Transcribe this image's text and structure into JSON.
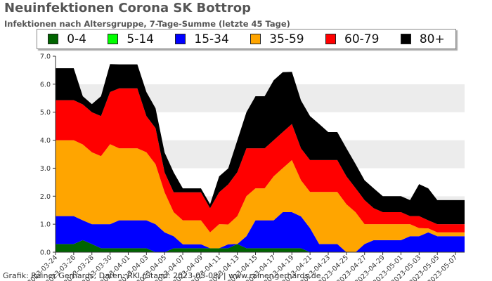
{
  "title": "Neuinfektionen Corona SK Bottrop",
  "subtitle": "Infektionen nach Altersgruppe, 7-Tage-Summe (letzte 45 Tage)",
  "footer": "Grafik: Rainer Gerhards, Daten: RKI (Stand: 2023-05-08) | www.rainer-gerhards.de",
  "legend": [
    {
      "label": "0-4",
      "color": "#006400"
    },
    {
      "label": "5-14",
      "color": "#00ff00"
    },
    {
      "label": "15-34",
      "color": "#0000ff"
    },
    {
      "label": "35-59",
      "color": "#ffa500"
    },
    {
      "label": "60-79",
      "color": "#ff0000"
    },
    {
      "label": "80+",
      "color": "#000000"
    }
  ],
  "chart_data": {
    "type": "area",
    "stacked": true,
    "title": "Neuinfektionen Corona SK Bottrop",
    "subtitle": "Infektionen nach Altersgruppe, 7-Tage-Summe (letzte 45 Tage)",
    "ylim": [
      0,
      7
    ],
    "yticks": [
      "0.0",
      "1.0",
      "2.0",
      "3.0",
      "4.0",
      "5.0",
      "6.0",
      "7.0"
    ],
    "x_tick_labels": [
      "2023-03-24",
      "2023-03-26",
      "2023-03-28",
      "2023-03-30",
      "2023-04-01",
      "2023-04-03",
      "2023-04-05",
      "2023-04-07",
      "2023-04-09",
      "2023-04-11",
      "2023-04-13",
      "2023-04-15",
      "2023-04-17",
      "2023-04-19",
      "2023-04-21",
      "2023-04-23",
      "2023-04-25",
      "2023-04-27",
      "2023-04-29",
      "2023-05-01",
      "2023-05-03",
      "2023-05-05",
      "2023-05-07"
    ],
    "x": [
      "2023-03-24",
      "2023-03-25",
      "2023-03-26",
      "2023-03-27",
      "2023-03-28",
      "2023-03-29",
      "2023-03-30",
      "2023-03-31",
      "2023-04-01",
      "2023-04-02",
      "2023-04-03",
      "2023-04-04",
      "2023-04-05",
      "2023-04-06",
      "2023-04-07",
      "2023-04-08",
      "2023-04-09",
      "2023-04-10",
      "2023-04-11",
      "2023-04-12",
      "2023-04-13",
      "2023-04-14",
      "2023-04-15",
      "2023-04-16",
      "2023-04-17",
      "2023-04-18",
      "2023-04-19",
      "2023-04-20",
      "2023-04-21",
      "2023-04-22",
      "2023-04-23",
      "2023-04-24",
      "2023-04-25",
      "2023-04-26",
      "2023-04-27",
      "2023-04-28",
      "2023-04-29",
      "2023-04-30",
      "2023-05-01",
      "2023-05-02",
      "2023-05-03",
      "2023-05-04",
      "2023-05-05",
      "2023-05-06",
      "2023-05-07",
      "2023-05-08"
    ],
    "grid": "horizontal bands",
    "legend_position": "top",
    "series": [
      {
        "name": "0-4",
        "color": "#006400",
        "values": [
          0.29,
          0.29,
          0.29,
          0.43,
          0.29,
          0.14,
          0.14,
          0.14,
          0.14,
          0.14,
          0.14,
          0,
          0,
          0.14,
          0.14,
          0.14,
          0.14,
          0.14,
          0.14,
          0.14,
          0.29,
          0.14,
          0.14,
          0.14,
          0.14,
          0.14,
          0.14,
          0.14,
          0,
          0,
          0,
          0,
          0,
          0,
          0,
          0,
          0,
          0,
          0,
          0,
          0,
          0,
          0,
          0,
          0,
          0
        ]
      },
      {
        "name": "5-14",
        "color": "#00ff00",
        "values": [
          0,
          0,
          0,
          0,
          0,
          0,
          0,
          0,
          0,
          0,
          0,
          0,
          0,
          0,
          0,
          0,
          0,
          0,
          0,
          0,
          0,
          0,
          0,
          0,
          0,
          0,
          0,
          0,
          0,
          0,
          0,
          0,
          0,
          0,
          0,
          0,
          0,
          0,
          0,
          0,
          0,
          0,
          0,
          0,
          0,
          0
        ]
      },
      {
        "name": "15-34",
        "color": "#0000ff",
        "values": [
          1.0,
          1.0,
          1.0,
          0.71,
          0.71,
          0.86,
          0.86,
          1.0,
          1.0,
          1.0,
          1.0,
          1.0,
          0.71,
          0.43,
          0.14,
          0.14,
          0.14,
          0.0,
          0.0,
          0.14,
          0.0,
          0.43,
          1.0,
          1.0,
          1.0,
          1.29,
          1.29,
          1.14,
          0.86,
          0.29,
          0.29,
          0.29,
          0,
          0,
          0.29,
          0.43,
          0.43,
          0.43,
          0.43,
          0.57,
          0.57,
          0.71,
          0.57,
          0.57,
          0.57,
          0.57
        ]
      },
      {
        "name": "35-59",
        "color": "#ffa500",
        "values": [
          2.71,
          2.71,
          2.71,
          2.71,
          2.57,
          2.43,
          2.86,
          2.57,
          2.57,
          2.57,
          2.43,
          2.14,
          1.43,
          0.86,
          0.86,
          0.86,
          0.86,
          0.57,
          0.86,
          0.71,
          1.0,
          1.43,
          1.14,
          1.14,
          1.57,
          1.57,
          1.86,
          1.29,
          1.29,
          1.86,
          1.86,
          1.86,
          1.71,
          1.43,
          0.71,
          0.57,
          0.57,
          0.57,
          0.57,
          0.43,
          0.29,
          0.14,
          0.14,
          0.14,
          0.14,
          0.14
        ]
      },
      {
        "name": "60-79",
        "color": "#ff0000",
        "values": [
          1.43,
          1.43,
          1.43,
          1.43,
          1.43,
          1.43,
          1.86,
          2.14,
          2.14,
          2.14,
          1.29,
          1.29,
          0.71,
          0.71,
          1.0,
          1.0,
          1.0,
          0.86,
          1.14,
          1.43,
          1.57,
          1.71,
          1.43,
          1.43,
          1.29,
          1.29,
          1.29,
          1.14,
          1.14,
          1.14,
          1.14,
          1.14,
          1.0,
          0.86,
          0.86,
          0.57,
          0.43,
          0.43,
          0.43,
          0.29,
          0.43,
          0.29,
          0.29,
          0.29,
          0.29,
          0.29
        ]
      },
      {
        "name": "80+",
        "color": "#000000",
        "values": [
          1.14,
          1.14,
          1.14,
          0.29,
          0.29,
          0.71,
          1.0,
          0.86,
          0.86,
          0.86,
          0.86,
          0.71,
          0.71,
          0.71,
          0.14,
          0.14,
          0.14,
          0.14,
          0.57,
          0.57,
          1.14,
          1.29,
          1.86,
          1.86,
          2.14,
          2.14,
          1.86,
          1.71,
          1.57,
          1.29,
          1.0,
          1.0,
          1.0,
          0.86,
          0.71,
          0.71,
          0.57,
          0.57,
          0.57,
          0.57,
          1.14,
          1.14,
          0.86,
          0.86,
          0.86,
          0.86
        ]
      }
    ]
  }
}
